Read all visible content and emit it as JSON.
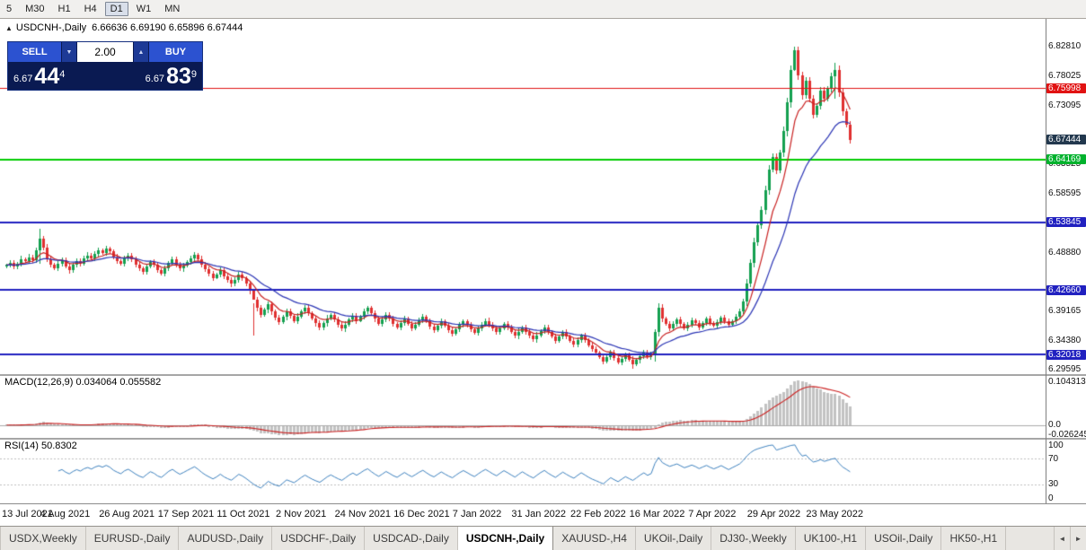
{
  "toolbar": {
    "timeframes": [
      "5",
      "M30",
      "H1",
      "H4",
      "D1",
      "W1",
      "MN"
    ],
    "active": "D1"
  },
  "chart_header": {
    "collapse_icon": "▲",
    "title": "USDCNH-,Daily",
    "ohlc_text": "6.66636 6.69190 6.65896 6.67444"
  },
  "trade_panel": {
    "sell_label": "SELL",
    "buy_label": "BUY",
    "volume": "2.00",
    "decrement_icon": "▼",
    "increment_icon": "▲",
    "sell_price": {
      "prefix": "6.67",
      "big": "44",
      "sup": "4"
    },
    "buy_price": {
      "prefix": "6.67",
      "big": "83",
      "sup": "9"
    }
  },
  "indicator_labels": {
    "macd": "MACD(12,26,9) 0.034064 0.055582",
    "rsi": "RSI(14) 50.8302"
  },
  "price_axis": [
    {
      "t": "6.82810",
      "v": 6.8281,
      "k": "grid"
    },
    {
      "t": "6.78025",
      "v": 6.78025,
      "k": "grid"
    },
    {
      "t": "6.73095",
      "v": 6.73095,
      "k": "grid"
    },
    {
      "t": "6.63525",
      "v": 6.63525,
      "k": "grid"
    },
    {
      "t": "6.58595",
      "v": 6.58595,
      "k": "grid"
    },
    {
      "t": "6.48880",
      "v": 6.4888,
      "k": "grid"
    },
    {
      "t": "6.39165",
      "v": 6.39165,
      "k": "grid"
    },
    {
      "t": "6.34380",
      "v": 6.3438,
      "k": "grid"
    },
    {
      "t": "6.29595",
      "v": 6.29595,
      "k": "grid"
    },
    {
      "t": "6.75998",
      "v": 6.75998,
      "k": "badge",
      "c": "#e11212"
    },
    {
      "t": "6.67444",
      "v": 6.67444,
      "k": "badge",
      "c": "#22384e"
    },
    {
      "t": "6.64169",
      "v": 6.64169,
      "k": "badge",
      "c": "#00b22d"
    },
    {
      "t": "6.53845",
      "v": 6.53845,
      "k": "badge",
      "c": "#2121c0"
    },
    {
      "t": "6.42660",
      "v": 6.4266,
      "k": "badge",
      "c": "#2121c0"
    },
    {
      "t": "6.32018",
      "v": 6.32018,
      "k": "badge",
      "c": "#2121c0"
    }
  ],
  "macd_axis": [
    {
      "t": "0.104313",
      "v": 0.104313
    },
    {
      "t": "0.0",
      "v": 0
    },
    {
      "t": "-0.026245",
      "v": -0.026245
    }
  ],
  "rsi_axis": [
    {
      "t": "100",
      "v": 100
    },
    {
      "t": "70",
      "v": 70
    },
    {
      "t": "30",
      "v": 30
    },
    {
      "t": "0",
      "v": 0
    }
  ],
  "date_axis": [
    {
      "t": "13 Jul 2021",
      "bar": 0
    },
    {
      "t": "4 Aug 2021",
      "bar": 16
    },
    {
      "t": "26 Aug 2021",
      "bar": 32
    },
    {
      "t": "17 Sep 2021",
      "bar": 48
    },
    {
      "t": "11 Oct 2021",
      "bar": 64
    },
    {
      "t": "2 Nov 2021",
      "bar": 80
    },
    {
      "t": "24 Nov 2021",
      "bar": 96
    },
    {
      "t": "16 Dec 2021",
      "bar": 112
    },
    {
      "t": "7 Jan 2022",
      "bar": 128
    },
    {
      "t": "31 Jan 2022",
      "bar": 144
    },
    {
      "t": "22 Feb 2022",
      "bar": 160
    },
    {
      "t": "16 Mar 2022",
      "bar": 176
    },
    {
      "t": "7 Apr 2022",
      "bar": 192
    },
    {
      "t": "29 Apr 2022",
      "bar": 208
    },
    {
      "t": "23 May 2022",
      "bar": 224
    }
  ],
  "tabs": {
    "items": [
      "USDX,Weekly",
      "EURUSD-,Daily",
      "AUDUSD-,Daily",
      "USDCHF-,Daily",
      "USDCAD-,Daily",
      "USDCNH-,Daily",
      "XAUUSD-,H4",
      "UKOil-,Daily",
      "DJ30-,Weekly",
      "UK100-,H1",
      "USOil-,Daily",
      "HK50-,H1"
    ],
    "active": "USDCNH-,Daily",
    "scroll_left_icon": "◄",
    "scroll_right_icon": "►"
  },
  "chart_data": {
    "type": "candlestick",
    "symbol": "USDCNH-",
    "period": "Daily",
    "current": {
      "open": 6.66636,
      "high": 6.6919,
      "low": 6.65896,
      "close": 6.67444
    },
    "ylim": [
      6.288,
      6.868
    ],
    "first_open": 6.465,
    "up_color": "#14a050",
    "down_color": "#e03030",
    "closes": [
      6.468,
      6.472,
      6.465,
      6.47,
      6.478,
      6.474,
      6.481,
      6.476,
      6.492,
      6.512,
      6.497,
      6.478,
      6.469,
      6.463,
      6.47,
      6.476,
      6.466,
      6.459,
      6.468,
      6.475,
      6.47,
      6.479,
      6.484,
      6.479,
      6.487,
      6.492,
      6.488,
      6.495,
      6.49,
      6.481,
      6.475,
      6.47,
      6.479,
      6.484,
      6.477,
      6.469,
      6.462,
      6.457,
      6.465,
      6.473,
      6.468,
      6.459,
      6.454,
      6.462,
      6.471,
      6.477,
      6.469,
      6.462,
      6.467,
      6.473,
      6.479,
      6.485,
      6.478,
      6.469,
      6.461,
      6.454,
      6.447,
      6.452,
      6.459,
      6.45,
      6.443,
      6.437,
      6.444,
      6.452,
      6.446,
      6.437,
      6.425,
      6.411,
      6.397,
      6.386,
      6.394,
      6.403,
      6.391,
      6.381,
      6.374,
      6.382,
      6.391,
      6.384,
      6.376,
      6.383,
      6.391,
      6.398,
      6.389,
      6.38,
      6.372,
      6.365,
      6.372,
      6.38,
      6.386,
      6.378,
      6.37,
      6.363,
      6.37,
      6.378,
      6.384,
      6.376,
      6.383,
      6.391,
      6.397,
      6.388,
      6.379,
      6.371,
      6.378,
      6.386,
      6.379,
      6.371,
      6.365,
      6.372,
      6.379,
      6.371,
      6.364,
      6.37,
      6.377,
      6.383,
      6.375,
      6.367,
      6.361,
      6.368,
      6.375,
      6.368,
      6.361,
      6.355,
      6.362,
      6.369,
      6.375,
      6.369,
      6.362,
      6.356,
      6.363,
      6.37,
      6.376,
      6.37,
      6.363,
      6.357,
      6.364,
      6.371,
      6.365,
      6.358,
      6.351,
      6.358,
      6.365,
      6.358,
      6.351,
      6.345,
      6.352,
      6.359,
      6.365,
      6.357,
      6.35,
      6.343,
      6.35,
      6.357,
      6.35,
      6.343,
      6.337,
      6.344,
      6.351,
      6.344,
      6.336,
      6.329,
      6.323,
      6.316,
      6.309,
      6.316,
      6.323,
      6.315,
      6.307,
      6.313,
      6.319,
      6.312,
      6.305,
      6.311,
      6.318,
      6.324,
      6.316,
      6.321,
      6.358,
      6.397,
      6.379,
      6.371,
      6.364,
      6.371,
      6.378,
      6.371,
      6.364,
      6.37,
      6.377,
      6.372,
      6.365,
      6.372,
      6.379,
      6.373,
      6.368,
      6.374,
      6.381,
      6.375,
      6.369,
      6.376,
      6.383,
      6.391,
      6.408,
      6.438,
      6.471,
      6.506,
      6.533,
      6.559,
      6.591,
      6.626,
      6.646,
      6.624,
      6.653,
      6.689,
      6.736,
      6.789,
      6.822,
      6.78,
      6.748,
      6.772,
      6.742,
      6.716,
      6.731,
      6.756,
      6.742,
      6.759,
      6.779,
      6.79,
      6.752,
      6.721,
      6.699,
      6.6744
    ],
    "wick_overrides": {
      "9": [
        6.527,
        6.47
      ],
      "67": [
        6.405,
        6.352
      ],
      "170": [
        6.318,
        6.297
      ],
      "176": [
        6.362,
        6.308
      ],
      "214": [
        6.8281,
        6.788
      ],
      "225": [
        6.801,
        6.742
      ]
    },
    "hlines": [
      {
        "price": 6.75998,
        "color": "#e11212",
        "width": 1
      },
      {
        "price": 6.64169,
        "color": "#00cc00",
        "width": 2
      },
      {
        "price": 6.53845,
        "color": "#2121c0",
        "width": 2
      },
      {
        "price": 6.4266,
        "color": "#2121c0",
        "width": 2
      },
      {
        "price": 6.32018,
        "color": "#2121c0",
        "width": 2
      }
    ],
    "moving_averages": [
      {
        "period": 8,
        "color": "#c92121"
      },
      {
        "period": 21,
        "color": "#2b35b5"
      }
    ],
    "macd": {
      "fast": 12,
      "slow": 26,
      "signal": 9,
      "value": 0.034064,
      "signal_value": 0.055582,
      "ylim": [
        -0.03,
        0.115
      ],
      "hist_color": "#c2c2c2",
      "signal_color": "#cc2222"
    },
    "rsi": {
      "period": 14,
      "value": 50.8302,
      "color": "#3f83c0",
      "levels": [
        70,
        30
      ],
      "ylim": [
        0,
        100
      ]
    }
  }
}
